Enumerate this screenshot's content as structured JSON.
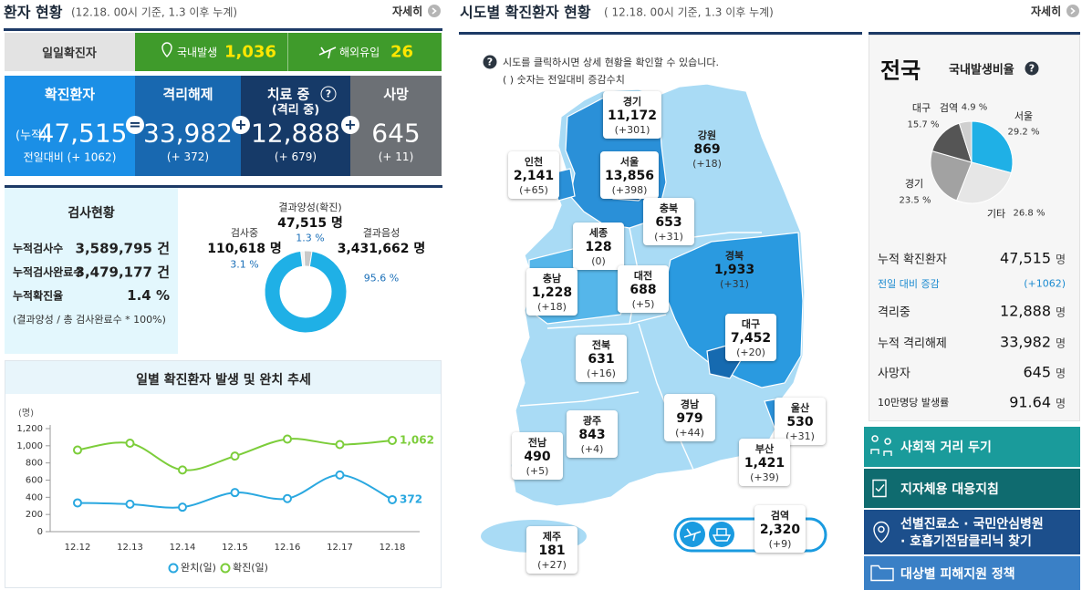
{
  "patient_status": {
    "title": "환자 현황",
    "basis": "(12.18. 00시 기준, 1.3 이후 누계)",
    "more": "자세히",
    "daily": {
      "label": "일일확진자",
      "domestic_label": "국내발생",
      "domestic": "1,036",
      "overseas_label": "해외유입",
      "overseas": "26"
    },
    "totals": [
      {
        "label": "확진환자",
        "prefix": "(누적)",
        "value": "47,515",
        "delta": "전일대비 (+ 1062)"
      },
      {
        "label": "격리해제",
        "value": "33,982",
        "delta": "(+ 372)"
      },
      {
        "label": "치료 중",
        "sublabel": "(격리 중)",
        "value": "12,888",
        "delta": "(+ 679)"
      },
      {
        "label": "사망",
        "value": "645",
        "delta": "(+ 11)"
      }
    ],
    "operators": [
      "=",
      "+",
      "+"
    ],
    "tests": {
      "title": "검사현황",
      "rows": [
        {
          "label": "누적검사수",
          "value": "3,589,795 건"
        },
        {
          "label": "누적검사완료수",
          "value": "3,479,177 건"
        },
        {
          "label": "누적확진율",
          "value": "1.4 %"
        }
      ],
      "note": "(결과양성 / 총 검사완료수 * 100%)"
    }
  },
  "regional": {
    "title": "시도별 확진환자 현황",
    "basis": "( 12.18. 00시 기준, 1.3 이후 누계)",
    "more": "자세히",
    "help": "시도를 클릭하시면 상세 현황을 확인할 수 있습니다.",
    "note": "( ) 숫자는 전일대비 증감수치",
    "regions": [
      {
        "name": "경기",
        "value": "11,172",
        "delta": "(+301)"
      },
      {
        "name": "강원",
        "value": "869",
        "delta": "(+18)"
      },
      {
        "name": "인천",
        "value": "2,141",
        "delta": "(+65)"
      },
      {
        "name": "서울",
        "value": "13,856",
        "delta": "(+398)"
      },
      {
        "name": "충북",
        "value": "653",
        "delta": "(+31)"
      },
      {
        "name": "세종",
        "value": "128",
        "delta": "(0)"
      },
      {
        "name": "충남",
        "value": "1,228",
        "delta": "(+18)"
      },
      {
        "name": "대전",
        "value": "688",
        "delta": "(+5)"
      },
      {
        "name": "경북",
        "value": "1,933",
        "delta": "(+31)"
      },
      {
        "name": "대구",
        "value": "7,452",
        "delta": "(+20)"
      },
      {
        "name": "전북",
        "value": "631",
        "delta": "(+16)"
      },
      {
        "name": "경남",
        "value": "979",
        "delta": "(+44)"
      },
      {
        "name": "광주",
        "value": "843",
        "delta": "(+4)"
      },
      {
        "name": "울산",
        "value": "530",
        "delta": "(+31)"
      },
      {
        "name": "전남",
        "value": "490",
        "delta": "(+5)"
      },
      {
        "name": "부산",
        "value": "1,421",
        "delta": "(+39)"
      },
      {
        "name": "제주",
        "value": "181",
        "delta": "(+27)"
      },
      {
        "name": "검역",
        "value": "2,320",
        "delta": "(+9)"
      }
    ]
  },
  "national": {
    "title": "전국",
    "stats": [
      {
        "label": "누적 확진환자",
        "value": "47,515",
        "unit": "명"
      },
      {
        "label": "전일 대비 증감",
        "value": "(+1062)"
      },
      {
        "label": "격리중",
        "value": "12,888",
        "unit": "명"
      },
      {
        "label": "누적 격리해제",
        "value": "33,982",
        "unit": "명"
      },
      {
        "label": "사망자",
        "value": "645",
        "unit": "명"
      },
      {
        "label": "10만명당 발생률",
        "value": "91.64",
        "unit": "명"
      }
    ]
  },
  "help_icon": "?",
  "links": [
    [
      "사회적 거리 두기"
    ],
    [
      "지자체용 대응지침"
    ],
    [
      "선별진료소 · 국민안심병원",
      "· 호흡기전담클리닉 찾기"
    ],
    [
      "대상별 피해지원 정책"
    ]
  ],
  "chart_data": [
    {
      "type": "line",
      "title": "일별 확진환자 발생 및 완치 추세",
      "ylabel": "(명)",
      "categories": [
        "12.12",
        "12.13",
        "12.14",
        "12.15",
        "12.16",
        "12.17",
        "12.18"
      ],
      "series": [
        {
          "name": "완치(일)",
          "color": "#2aa8e0",
          "values": [
            335,
            320,
            285,
            455,
            385,
            660,
            372
          ],
          "value_labels": [
            null,
            null,
            null,
            null,
            null,
            null,
            "372"
          ]
        },
        {
          "name": "확진(일)",
          "color": "#7ccd3a",
          "values": [
            950,
            1030,
            718,
            880,
            1078,
            1014,
            1062
          ],
          "value_labels": [
            null,
            null,
            null,
            null,
            null,
            null,
            "1,062"
          ]
        }
      ],
      "ylim": [
        0,
        1200
      ],
      "yticks": [
        0,
        200,
        400,
        600,
        800,
        {
          "value": 1000,
          "label": "1,000"
        },
        {
          "value": 1200,
          "label": "1,200"
        }
      ],
      "grid": false
    },
    {
      "type": "donut",
      "categories": [
        "결과양성(확진)",
        "검사중",
        "결과음성"
      ],
      "values": [
        1.3,
        3.1,
        95.6
      ],
      "value_labels": [
        "1.3 %",
        "3.1 %",
        "95.6 %"
      ],
      "counts": [
        "47,515 명",
        "110,618 명",
        "3,431,662 명"
      ],
      "colors": [
        "#f2f2f2",
        "#c9c9c9",
        "#1fb0e6"
      ]
    },
    {
      "type": "pie",
      "title": "국내발생비율",
      "categories": [
        "서울",
        "기타",
        "경기",
        "대구",
        "검역"
      ],
      "values": [
        29.2,
        26.8,
        23.5,
        15.7,
        4.9
      ],
      "value_labels": [
        "29.2 %",
        "26.8 %",
        "23.5 %",
        "15.7 %",
        "4.9 %"
      ],
      "colors": [
        "#1fb0e6",
        "#e6e6e6",
        "#a2a2a2",
        "#555555",
        "#cfcfcf"
      ]
    }
  ]
}
